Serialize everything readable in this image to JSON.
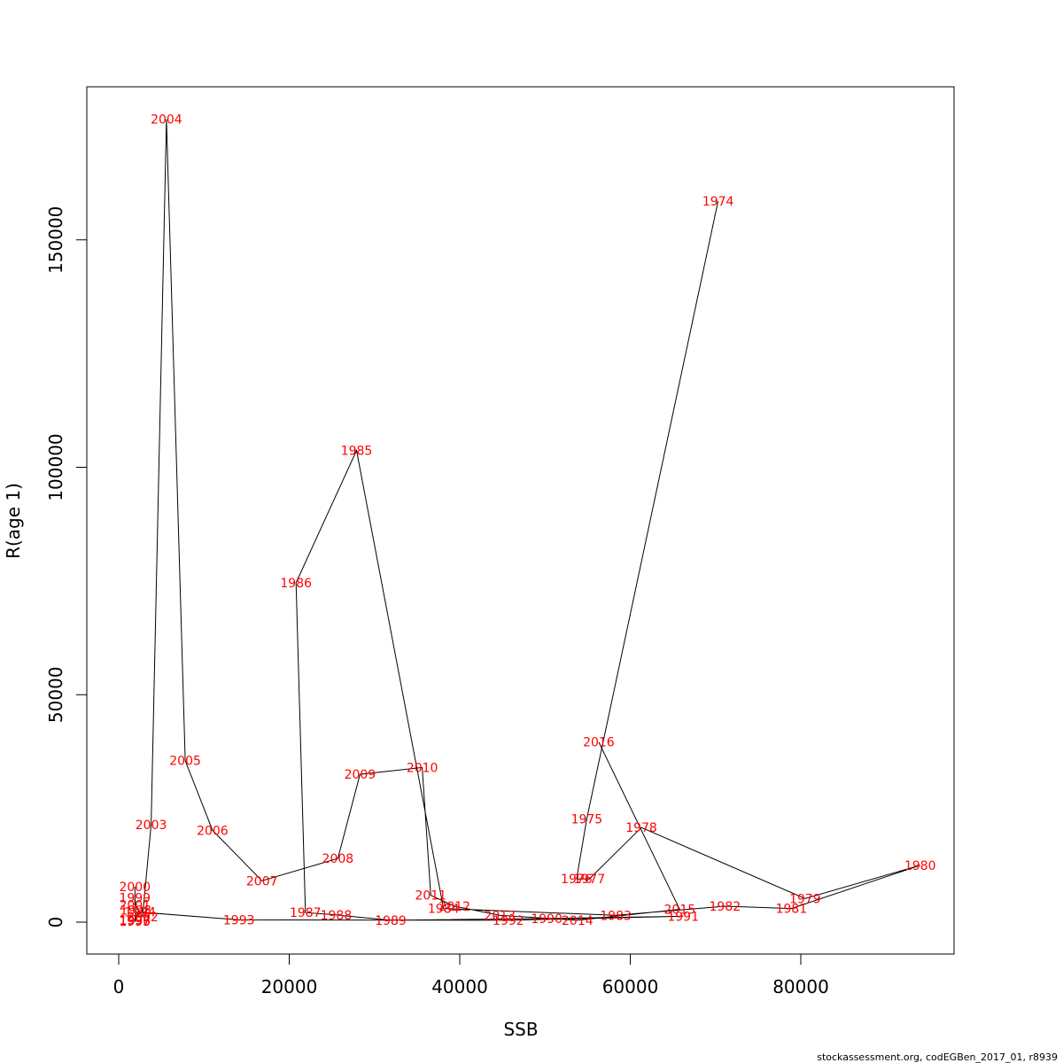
{
  "chart_data": {
    "type": "line",
    "title": "",
    "xlabel": "SSB",
    "ylabel": "R(age 1)",
    "xlim": [
      0,
      95000
    ],
    "ylim": [
      0,
      175000
    ],
    "x_ticks": [
      0,
      20000,
      40000,
      60000,
      80000
    ],
    "x_tick_labels": [
      "0",
      "20000",
      "40000",
      "60000",
      "80000"
    ],
    "y_ticks": [
      0,
      50000,
      100000,
      150000
    ],
    "y_tick_labels": [
      "0",
      "50000",
      "100000",
      "150000"
    ],
    "grid": false,
    "line_color": "#000000",
    "label_color": "#ff0000",
    "points": [
      {
        "label": "1974",
        "x": 70300,
        "y": 158500
      },
      {
        "label": "1975",
        "x": 54900,
        "y": 22700
      },
      {
        "label": "1976",
        "x": 53700,
        "y": 9500
      },
      {
        "label": "1977",
        "x": 55200,
        "y": 9500
      },
      {
        "label": "1978",
        "x": 61300,
        "y": 20800
      },
      {
        "label": "1979",
        "x": 80500,
        "y": 5200
      },
      {
        "label": "1980",
        "x": 94000,
        "y": 12500
      },
      {
        "label": "1981",
        "x": 78900,
        "y": 3000
      },
      {
        "label": "1982",
        "x": 71100,
        "y": 3500
      },
      {
        "label": "1983",
        "x": 58300,
        "y": 1500
      },
      {
        "label": "1984",
        "x": 38100,
        "y": 3000
      },
      {
        "label": "1985",
        "x": 27900,
        "y": 103700
      },
      {
        "label": "1986",
        "x": 20800,
        "y": 74600
      },
      {
        "label": "1987",
        "x": 21900,
        "y": 2100
      },
      {
        "label": "1988",
        "x": 25500,
        "y": 1600
      },
      {
        "label": "1989",
        "x": 31900,
        "y": 400
      },
      {
        "label": "1990",
        "x": 50200,
        "y": 800
      },
      {
        "label": "1991",
        "x": 66200,
        "y": 1300
      },
      {
        "label": "1992",
        "x": 45700,
        "y": 400
      },
      {
        "label": "1993",
        "x": 14100,
        "y": 500
      },
      {
        "label": "1994",
        "x": 2500,
        "y": 2200
      },
      {
        "label": "1995",
        "x": 1900,
        "y": 200
      },
      {
        "label": "1996",
        "x": 1900,
        "y": 300
      },
      {
        "label": "1997",
        "x": 1900,
        "y": 500
      },
      {
        "label": "1998",
        "x": 2000,
        "y": 2600
      },
      {
        "label": "1999",
        "x": 1900,
        "y": 5400
      },
      {
        "label": "2000",
        "x": 1900,
        "y": 7800
      },
      {
        "label": "2001",
        "x": 1900,
        "y": 3800
      },
      {
        "label": "2002",
        "x": 2800,
        "y": 1200
      },
      {
        "label": "2003",
        "x": 3800,
        "y": 21400
      },
      {
        "label": "2004",
        "x": 5600,
        "y": 176500
      },
      {
        "label": "2005",
        "x": 7800,
        "y": 35500
      },
      {
        "label": "2006",
        "x": 11000,
        "y": 20200
      },
      {
        "label": "2007",
        "x": 16800,
        "y": 9100
      },
      {
        "label": "2008",
        "x": 25700,
        "y": 14000
      },
      {
        "label": "2009",
        "x": 28300,
        "y": 32500
      },
      {
        "label": "2010",
        "x": 35600,
        "y": 34000
      },
      {
        "label": "2011",
        "x": 36600,
        "y": 5900
      },
      {
        "label": "2012",
        "x": 39400,
        "y": 3500
      },
      {
        "label": "2013",
        "x": 44700,
        "y": 1500
      },
      {
        "label": "2014",
        "x": 53800,
        "y": 400
      },
      {
        "label": "2015",
        "x": 65800,
        "y": 2800
      },
      {
        "label": "2016",
        "x": 56300,
        "y": 39600
      }
    ]
  },
  "footer": {
    "text": "stockassessment.org, codEGBen_2017_01, r8939"
  }
}
